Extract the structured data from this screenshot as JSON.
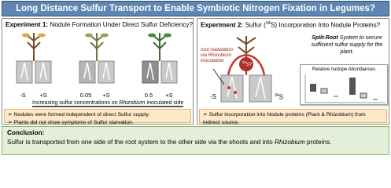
{
  "header": {
    "title": "Long Distance Sulfur Transport to Enable Symbiotic Nitrogen Fixation in Legumes?"
  },
  "experiment1": {
    "label": "Experiment 1:",
    "question": "Nodule Formation Under Direct Sulfur Deficiency?",
    "pots": [
      [
        "-S",
        "+S"
      ],
      [
        "0.05",
        "+S"
      ],
      [
        "0.5",
        "+S"
      ]
    ],
    "caption": [
      "Increasing sulfur concentrations on ",
      "Rhizobium",
      " inoculated side"
    ],
    "bullets": [
      "Nodules were formed independent of direct Sulfur supply.",
      "Plants did not show symptoms of Sulfur starvation."
    ]
  },
  "experiment2": {
    "label": "Experiment 2:",
    "question": [
      "Sulfur (",
      "34",
      "S) Incorporation Into Nodule Proteins?"
    ],
    "annotation": [
      "root nodulation",
      "via ",
      "Rhizobium",
      "inoculation"
    ],
    "tracer": [
      "34",
      "S?"
    ],
    "left_side": "-S",
    "right_side": [
      "34",
      "S"
    ],
    "note": [
      "Split-Root",
      " System to secure sufficient sulfur supply for the plant."
    ],
    "inset_title": "Relative Isotope Abundances",
    "bullets": [
      "Sulfur incorporation into Nodule proteins (Plant & Rhizobium) from indirect source."
    ]
  },
  "conclusion": {
    "label": "Conclusion:",
    "text": [
      "Sulfur is transported from one side of the root system to the other side via the shoots and into ",
      "Rhizobium",
      " proteins."
    ]
  }
}
